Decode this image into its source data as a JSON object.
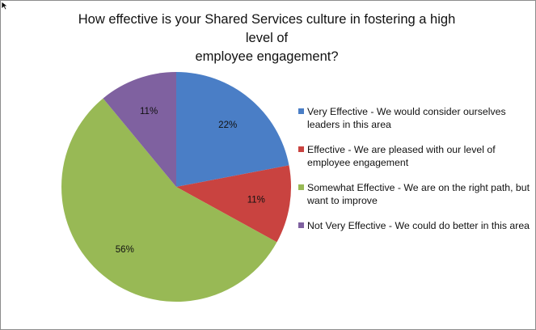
{
  "chart_data": {
    "type": "pie",
    "title": "How effective is your Shared Services culture in fostering a high level of employee engagement?",
    "title_lines": [
      "How effective is your Shared Services culture in fostering a high level of",
      "employee engagement?"
    ],
    "slices": [
      {
        "label": "Very Effective - We would consider ourselves leaders in this area",
        "legend_lines": [
          "Very Effective - We would consider ourselves",
          "leaders in this area"
        ],
        "value": 22,
        "display": "22%",
        "color": "#4a7ec6"
      },
      {
        "label": "Effective - We are pleased with our level of employee engagement",
        "legend_lines": [
          "Effective - We are pleased with our level of",
          "employee engagement"
        ],
        "value": 11,
        "display": "11%",
        "color": "#c94340"
      },
      {
        "label": "Somewhat Effective - We are on the right path, but want to improve",
        "legend_lines": [
          "Somewhat Effective - We are on the right path, but",
          "want to improve"
        ],
        "value": 56,
        "display": "56%",
        "color": "#98b955"
      },
      {
        "label": "Not Very Effective - We could do better in this area",
        "legend_lines": [
          "Not Very Effective - We could do better in this area"
        ],
        "value": 11,
        "display": "11%",
        "color": "#7f61a0"
      }
    ],
    "legend_position": "right"
  }
}
